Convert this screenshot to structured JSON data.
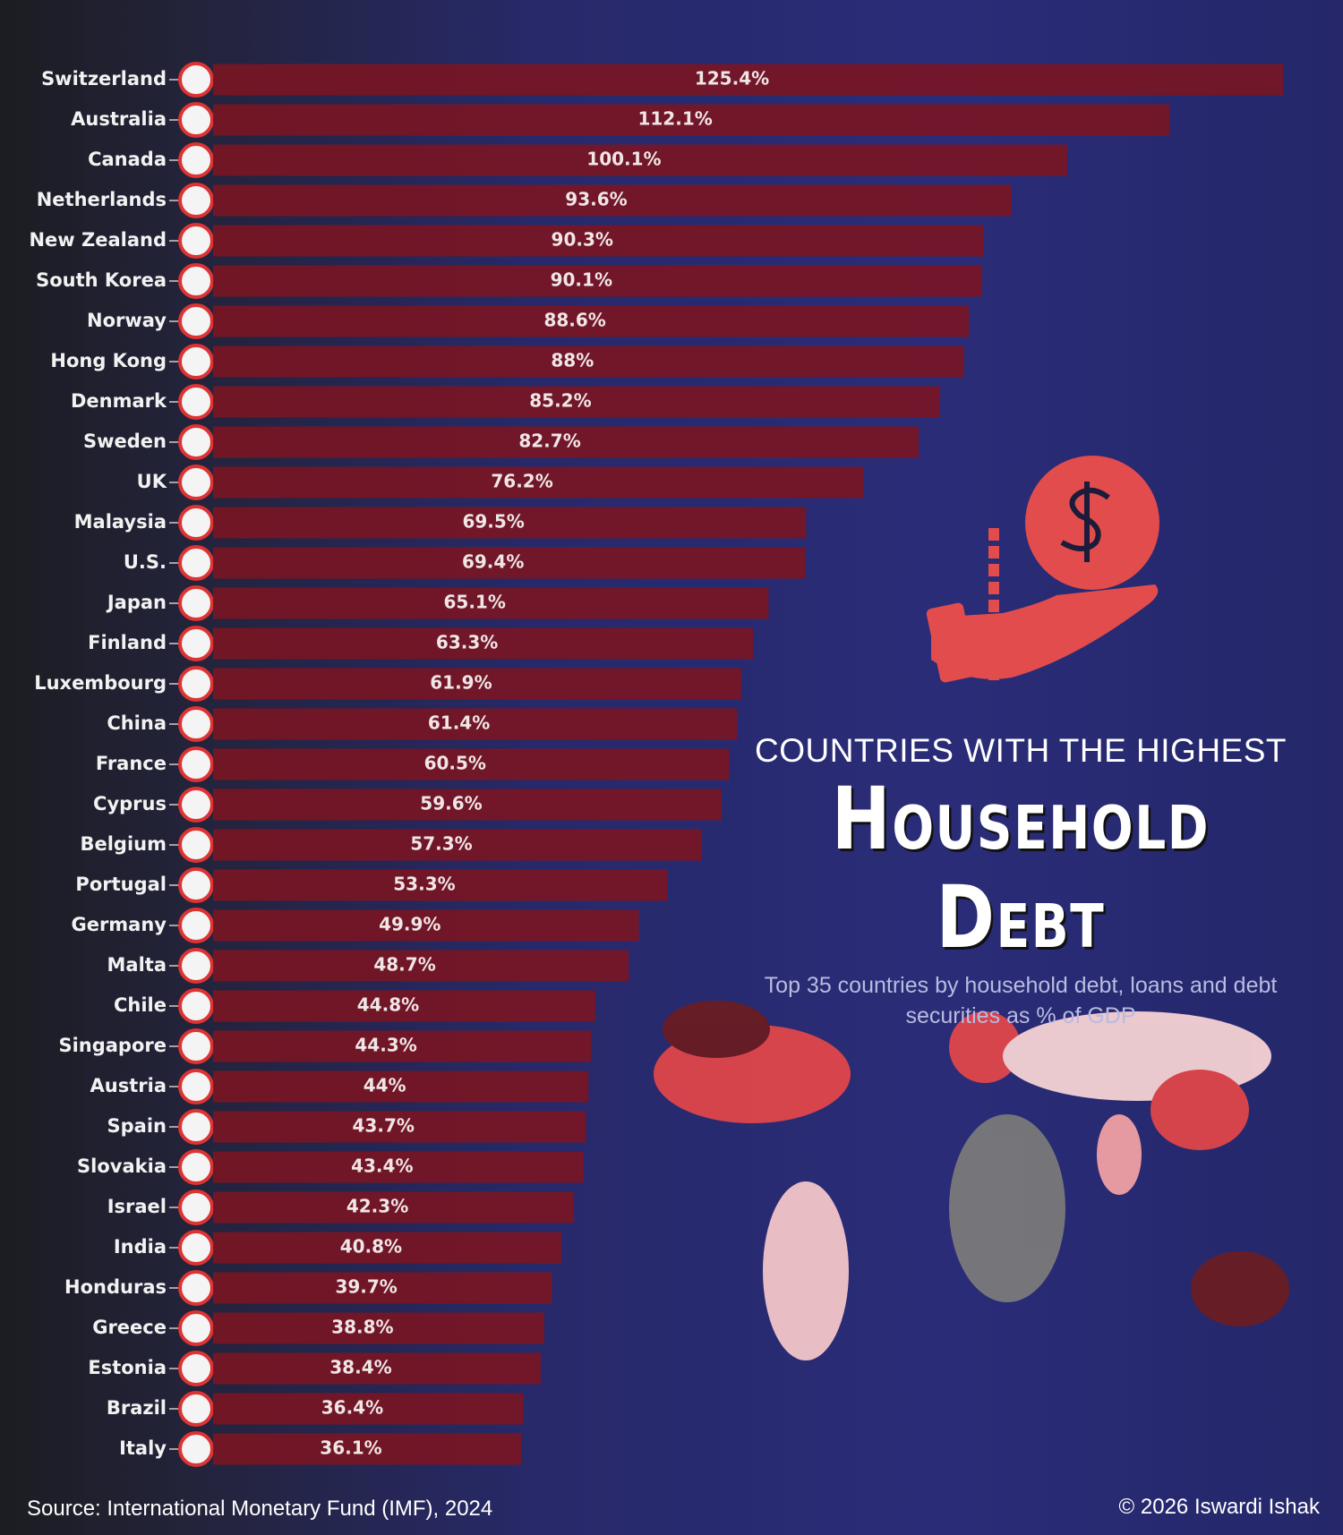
{
  "chart_data": {
    "type": "bar",
    "orientation": "horizontal",
    "overline": "COUNTRIES WITH THE HIGHEST",
    "title": "Household Debt",
    "subtitle": "Top 35 countries by household debt, loans and debt securities as % of GDP",
    "categories": [
      "Switzerland",
      "Australia",
      "Canada",
      "Netherlands",
      "New Zealand",
      "South Korea",
      "Norway",
      "Hong Kong",
      "Denmark",
      "Sweden",
      "UK",
      "Malaysia",
      "U.S.",
      "Japan",
      "Finland",
      "Luxembourg",
      "China",
      "France",
      "Cyprus",
      "Belgium",
      "Portugal",
      "Germany",
      "Malta",
      "Chile",
      "Singapore",
      "Austria",
      "Spain",
      "Slovakia",
      "Israel",
      "India",
      "Honduras",
      "Greece",
      "Estonia",
      "Brazil",
      "Italy"
    ],
    "values": [
      125.4,
      112.1,
      100.1,
      93.6,
      90.3,
      90.1,
      88.6,
      88,
      85.2,
      82.7,
      76.2,
      69.5,
      69.4,
      65.1,
      63.3,
      61.9,
      61.4,
      60.5,
      59.6,
      57.3,
      53.3,
      49.9,
      48.7,
      44.8,
      44.3,
      44,
      43.7,
      43.4,
      42.3,
      40.8,
      39.7,
      38.8,
      38.4,
      36.4,
      36.1
    ],
    "value_labels": [
      "125.4%",
      "112.1%",
      "100.1%",
      "93.6%",
      "90.3%",
      "90.1%",
      "88.6%",
      "88%",
      "85.2%",
      "82.7%",
      "76.2%",
      "69.5%",
      "69.4%",
      "65.1%",
      "63.3%",
      "61.9%",
      "61.4%",
      "60.5%",
      "59.6%",
      "57.3%",
      "53.3%",
      "49.9%",
      "48.7%",
      "44.8%",
      "44.3%",
      "44%",
      "43.7%",
      "43.4%",
      "42.3%",
      "40.8%",
      "39.7%",
      "38.8%",
      "38.4%",
      "36.4%",
      "36.1%"
    ],
    "color": "#7a1522",
    "source": "Source: International Monetary Fund (IMF), 2024",
    "credit": "© 2026 Iswardi Ishak"
  }
}
